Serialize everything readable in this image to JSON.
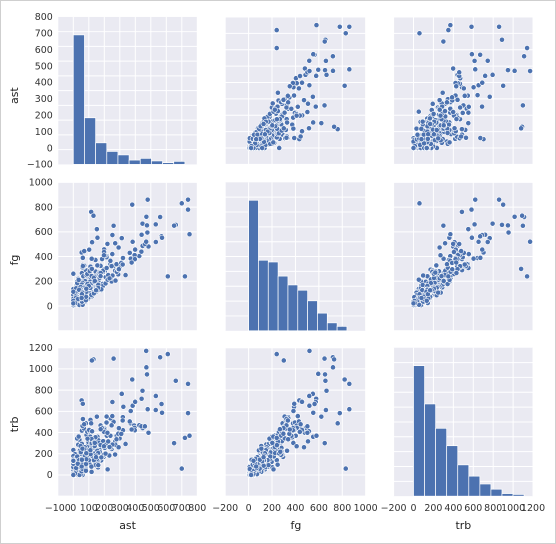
{
  "chart_data": {
    "type": "scatter",
    "variables": [
      {
        "key": "ast",
        "label": "ast",
        "ylabel": "ast"
      },
      {
        "key": "fg",
        "label": "fg",
        "ylabel": "fg"
      },
      {
        "key": "trb",
        "label": "trb",
        "ylabel": "trb"
      }
    ],
    "axes": {
      "ast": {
        "range": [
          -100,
          800
        ],
        "y_ticks": [
          -100,
          0,
          100,
          200,
          300,
          400,
          500,
          600,
          700,
          800
        ],
        "y_tick_labels": [
          "−100",
          "0",
          "100",
          "200",
          "300",
          "400",
          "500",
          "600",
          "700",
          "800"
        ],
        "x_ticks": [
          -100,
          0,
          100,
          200,
          300,
          400,
          500,
          600,
          700,
          800
        ],
        "x_tick_labels": [
          "−100",
          "0",
          "100",
          "200",
          "300",
          "400",
          "500",
          "600",
          "700",
          "800"
        ]
      },
      "fg": {
        "range": [
          -200,
          1000
        ],
        "y_ticks": [
          -200,
          0,
          200,
          400,
          600,
          800,
          1000
        ],
        "y_tick_labels": [
          "",
          "0",
          "200",
          "400",
          "600",
          "800",
          "1000"
        ],
        "x_ticks": [
          -200,
          0,
          200,
          400,
          600,
          800,
          1000
        ],
        "x_tick_labels": [
          "−200",
          "0",
          "200",
          "400",
          "600",
          "800",
          "1000"
        ]
      },
      "trb": {
        "range": [
          -200,
          1200
        ],
        "y_ticks": [
          -200,
          0,
          200,
          400,
          600,
          800,
          1000,
          1200
        ],
        "y_tick_labels": [
          "",
          "0",
          "200",
          "400",
          "600",
          "800",
          "1000",
          "1200"
        ],
        "x_ticks": [
          -200,
          0,
          200,
          400,
          600,
          800,
          1000,
          1200
        ],
        "x_tick_labels": [
          "−200",
          "0",
          "200",
          "400",
          "600",
          "800",
          "1000",
          "1200"
        ]
      }
    },
    "histograms": {
      "ast": {
        "bin_edges": [
          0,
          72,
          144,
          216,
          288,
          360,
          432,
          504,
          576,
          648,
          720
        ],
        "counts": [
          300,
          108,
          50,
          30,
          22,
          10,
          14,
          8,
          4,
          7
        ]
      },
      "fg": {
        "bin_edges": [
          0,
          84,
          168,
          252,
          336,
          420,
          504,
          588,
          672,
          756,
          840
        ],
        "counts": [
          148,
          80,
          78,
          62,
          52,
          46,
          34,
          20,
          9,
          5
        ]
      },
      "trb": {
        "bin_edges": [
          0,
          111,
          222,
          333,
          444,
          555,
          666,
          777,
          888,
          999,
          1110
        ],
        "counts": [
          150,
          106,
          78,
          58,
          36,
          23,
          14,
          8,
          3,
          2
        ]
      }
    },
    "notable_points": [
      {
        "ast": 560,
        "fg": 720,
        "trb": 1110
      },
      {
        "ast": 130,
        "fg": 730,
        "trb": 1090
      },
      {
        "ast": 720,
        "fg": 240,
        "trb": 350
      },
      {
        "ast": 650,
        "fg": 650,
        "trb": 300
      },
      {
        "ast": 750,
        "fg": 580,
        "trb": 370
      },
      {
        "ast": 480,
        "fg": 860,
        "trb": 620
      },
      {
        "ast": 380,
        "fg": 820,
        "trb": 900
      },
      {
        "ast": 700,
        "fg": 830,
        "trb": 60
      },
      {
        "ast": 470,
        "fg": 520,
        "trb": 1170
      },
      {
        "ast": 610,
        "fg": 240,
        "trb": 1140
      },
      {
        "ast": 120,
        "fg": 300,
        "trb": 1080
      }
    ],
    "grid": true,
    "legend": "none"
  }
}
